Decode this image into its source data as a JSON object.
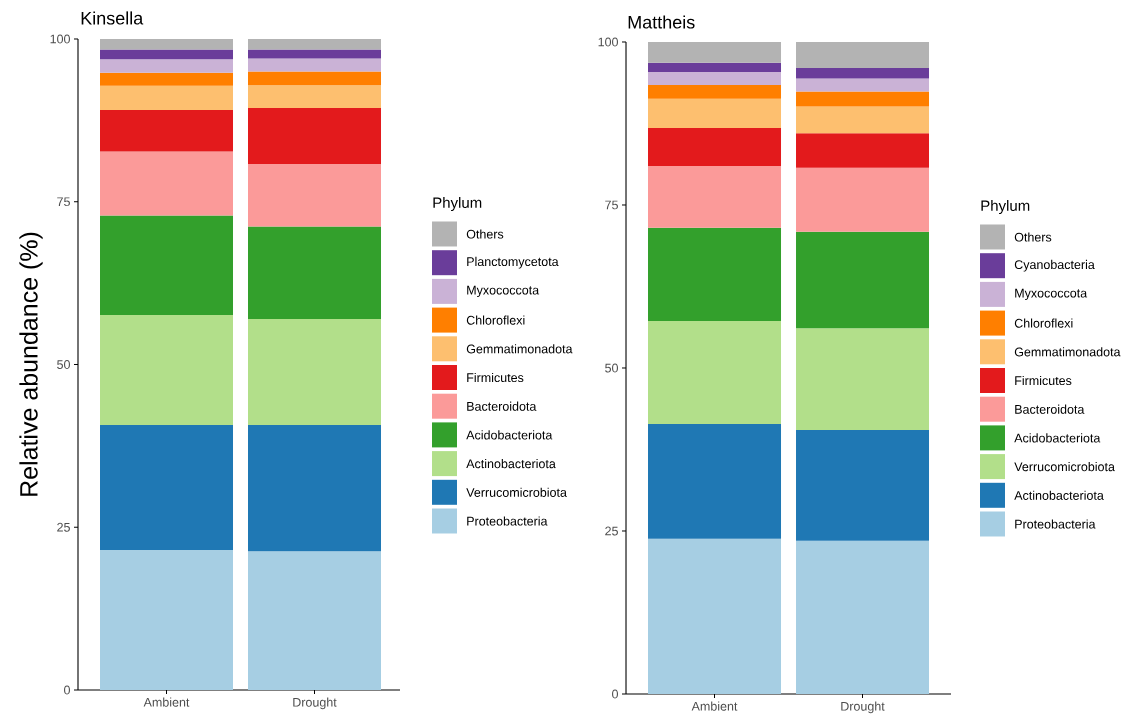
{
  "chart_data": [
    {
      "type": "bar",
      "stacked": true,
      "title": "Kinsella",
      "ylabel": "Relative abundance (%)",
      "legend_title": "Phylum",
      "legend": "right",
      "grid": false,
      "categories": [
        "Ambient",
        "Drought"
      ],
      "ylim": [
        0,
        100
      ],
      "yticks": [
        0,
        25,
        50,
        75,
        100
      ],
      "series": [
        {
          "name": "Proteobacteria",
          "color": "#a6cee3",
          "values": [
            21.5,
            21.3
          ]
        },
        {
          "name": "Verrucomicrobiota",
          "color": "#1f78b4",
          "values": [
            19.2,
            19.4
          ]
        },
        {
          "name": "Actinobacteriota",
          "color": "#b2df8a",
          "values": [
            16.9,
            16.3
          ]
        },
        {
          "name": "Acidobacteriota",
          "color": "#33a02c",
          "values": [
            15.3,
            14.2
          ]
        },
        {
          "name": "Bacteroidota",
          "color": "#fb9a99",
          "values": [
            9.8,
            9.6
          ]
        },
        {
          "name": "Firmicutes",
          "color": "#e31a1c",
          "values": [
            6.4,
            8.6
          ]
        },
        {
          "name": "Gemmatimonadota",
          "color": "#fdbf6f",
          "values": [
            3.7,
            3.5
          ]
        },
        {
          "name": "Chloroflexi",
          "color": "#ff7f00",
          "values": [
            2.0,
            2.1
          ]
        },
        {
          "name": "Myxococcota",
          "color": "#cab2d6",
          "values": [
            2.1,
            2.0
          ]
        },
        {
          "name": "Planctomycetota",
          "color": "#6a3d9a",
          "values": [
            1.5,
            1.4
          ]
        },
        {
          "name": "Others",
          "color": "#b3b3b3",
          "values": [
            1.6,
            1.6
          ]
        }
      ]
    },
    {
      "type": "bar",
      "stacked": true,
      "title": "Mattheis",
      "legend_title": "Phylum",
      "legend": "right",
      "grid": false,
      "categories": [
        "Ambient",
        "Drought"
      ],
      "ylim": [
        0,
        100
      ],
      "yticks": [
        0,
        25,
        50,
        75,
        100
      ],
      "series": [
        {
          "name": "Proteobacteria",
          "color": "#a6cee3",
          "values": [
            23.8,
            23.5
          ]
        },
        {
          "name": "Actinobacteriota",
          "color": "#1f78b4",
          "values": [
            17.6,
            17.0
          ]
        },
        {
          "name": "Verrucomicrobiota",
          "color": "#b2df8a",
          "values": [
            15.8,
            15.6
          ]
        },
        {
          "name": "Acidobacteriota",
          "color": "#33a02c",
          "values": [
            14.3,
            14.8
          ]
        },
        {
          "name": "Bacteroidota",
          "color": "#fb9a99",
          "values": [
            9.5,
            9.8
          ]
        },
        {
          "name": "Firmicutes",
          "color": "#e31a1c",
          "values": [
            5.8,
            5.3
          ]
        },
        {
          "name": "Gemmatimonadota",
          "color": "#fdbf6f",
          "values": [
            4.5,
            4.1
          ]
        },
        {
          "name": "Chloroflexi",
          "color": "#ff7f00",
          "values": [
            2.1,
            2.3
          ]
        },
        {
          "name": "Myxococcota",
          "color": "#cab2d6",
          "values": [
            2.0,
            2.0
          ]
        },
        {
          "name": "Cyanobacteria",
          "color": "#6a3d9a",
          "values": [
            1.4,
            1.6
          ]
        },
        {
          "name": "Others",
          "color": "#b3b3b3",
          "values": [
            3.2,
            4.0
          ]
        }
      ]
    }
  ]
}
